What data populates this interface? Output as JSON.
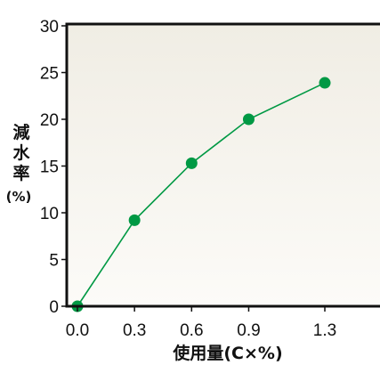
{
  "chart_data": {
    "type": "line",
    "x_tick_labels": [
      "0.0",
      "0.3",
      "0.6",
      "0.9",
      "1.3"
    ],
    "y_tick_labels": [
      "0",
      "5",
      "10",
      "15",
      "20",
      "25",
      "30"
    ],
    "xlabel": "使用量(C×%)",
    "ylabel_chars": [
      "減",
      "水",
      "率"
    ],
    "ylabel_unit": "(%)",
    "ylim": [
      0,
      30
    ],
    "grid": false,
    "series": [
      {
        "color": "#009944",
        "x": [
          0.0,
          0.3,
          0.6,
          0.9,
          1.3
        ],
        "y": [
          0,
          9.2,
          15.3,
          20.0,
          23.9
        ]
      }
    ]
  }
}
